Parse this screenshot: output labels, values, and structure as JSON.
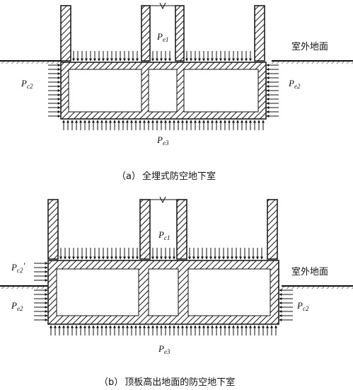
{
  "figure_a": {
    "pe1": {
      "base": "P",
      "sub": "e1"
    },
    "pe2_left": {
      "base": "P",
      "sub": "c2"
    },
    "pe2_right": {
      "base": "P",
      "sub": "e2"
    },
    "pe3": {
      "base": "P",
      "sub": "e3"
    },
    "ground_label": "室外地面",
    "caption_letter": "（a）",
    "caption_text": "全埋式防空地下室"
  },
  "figure_b": {
    "pe1": {
      "base": "P",
      "sub": "c1"
    },
    "pe2_prime": {
      "base": "P",
      "sub": "c2",
      "mark": "'"
    },
    "pe2_left": {
      "base": "P",
      "sub": "e2"
    },
    "pe2_right": {
      "base": "P",
      "sub": "c2"
    },
    "pe3": {
      "base": "P",
      "sub": "e3"
    },
    "ground_label": "室外地面",
    "caption_letter": "（b）",
    "caption_text": "顶板高出地面的防空地下室"
  }
}
